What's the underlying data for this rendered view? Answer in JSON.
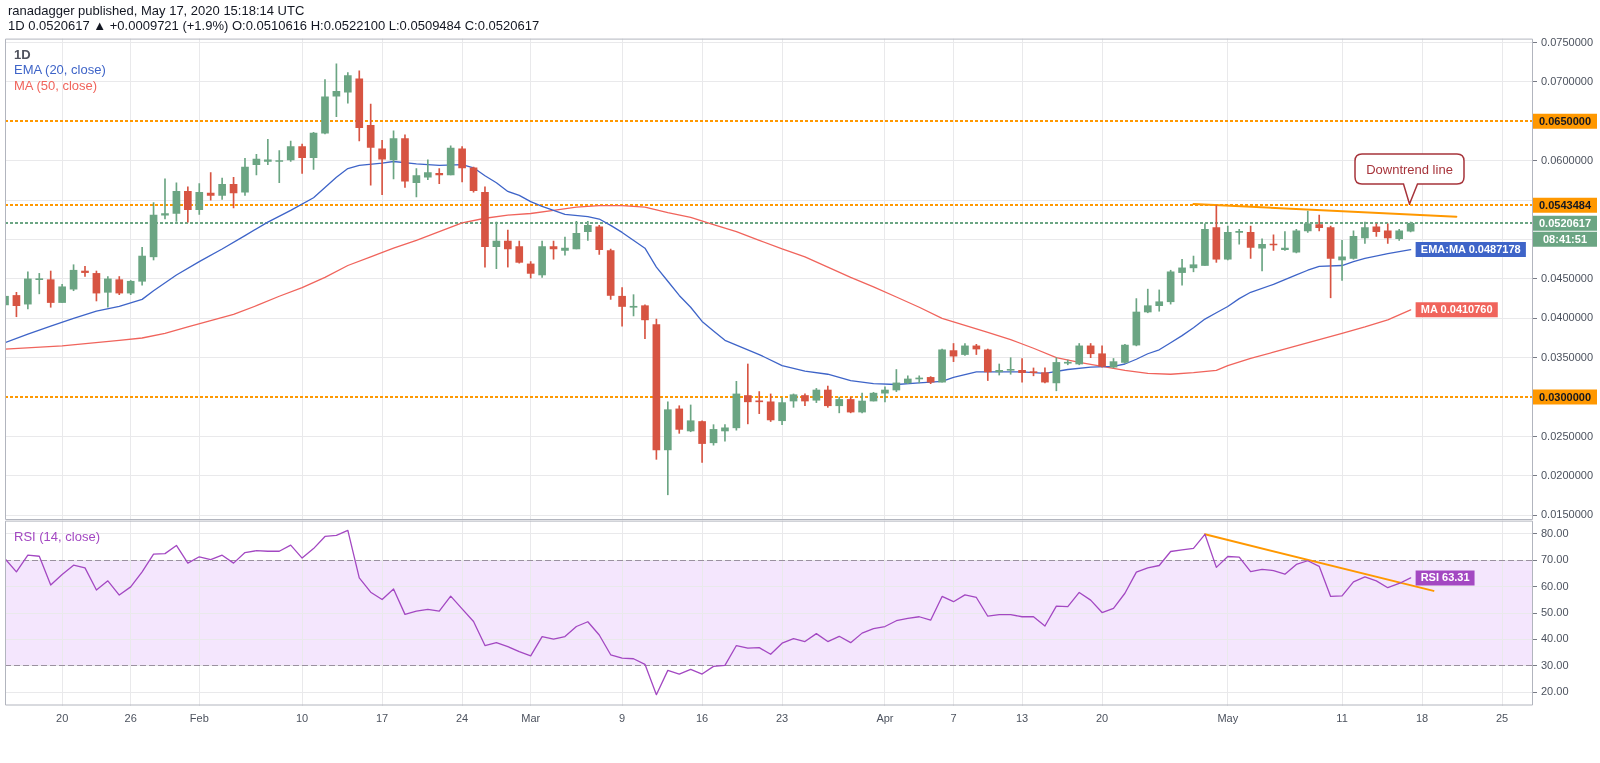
{
  "chart_data": [
    {
      "type": "candlestick",
      "title": "1D",
      "annotations": [
        "ranadagger published, May 17, 2020 15:18:14 UTC",
        "1D 0.0520617 ▲ +0.0009721 (+1.9%) O:0.0510616 H:0.0522100 L:0.0509484 C:0.0520617",
        "Downtrend line",
        "08:41:51"
      ],
      "x": [
        "2020-01-15",
        "2020-01-16",
        "2020-01-17",
        "2020-01-18",
        "2020-01-19",
        "2020-01-20",
        "2020-01-21",
        "2020-01-22",
        "2020-01-23",
        "2020-01-24",
        "2020-01-25",
        "2020-01-26",
        "2020-01-27",
        "2020-01-28",
        "2020-01-29",
        "2020-01-30",
        "2020-01-31",
        "2020-02-01",
        "2020-02-02",
        "2020-02-03",
        "2020-02-04",
        "2020-02-05",
        "2020-02-06",
        "2020-02-07",
        "2020-02-08",
        "2020-02-09",
        "2020-02-10",
        "2020-02-11",
        "2020-02-12",
        "2020-02-13",
        "2020-02-14",
        "2020-02-15",
        "2020-02-16",
        "2020-02-17",
        "2020-02-18",
        "2020-02-19",
        "2020-02-20",
        "2020-02-21",
        "2020-02-22",
        "2020-02-23",
        "2020-02-24",
        "2020-02-25",
        "2020-02-26",
        "2020-02-27",
        "2020-02-28",
        "2020-02-29",
        "2020-03-01",
        "2020-03-02",
        "2020-03-03",
        "2020-03-04",
        "2020-03-05",
        "2020-03-06",
        "2020-03-07",
        "2020-03-08",
        "2020-03-09",
        "2020-03-10",
        "2020-03-11",
        "2020-03-12",
        "2020-03-13",
        "2020-03-14",
        "2020-03-15",
        "2020-03-16",
        "2020-03-17",
        "2020-03-18",
        "2020-03-19",
        "2020-03-20",
        "2020-03-21",
        "2020-03-22",
        "2020-03-23",
        "2020-03-24",
        "2020-03-25",
        "2020-03-26",
        "2020-03-27",
        "2020-03-28",
        "2020-03-29",
        "2020-03-30",
        "2020-03-31",
        "2020-04-01",
        "2020-04-02",
        "2020-04-03",
        "2020-04-04",
        "2020-04-05",
        "2020-04-06",
        "2020-04-07",
        "2020-04-08",
        "2020-04-09",
        "2020-04-10",
        "2020-04-11",
        "2020-04-12",
        "2020-04-13",
        "2020-04-14",
        "2020-04-15",
        "2020-04-16",
        "2020-04-17",
        "2020-04-18",
        "2020-04-19",
        "2020-04-20",
        "2020-04-21",
        "2020-04-22",
        "2020-04-23",
        "2020-04-24",
        "2020-04-25",
        "2020-04-26",
        "2020-04-27",
        "2020-04-28",
        "2020-04-29",
        "2020-04-30",
        "2020-05-01",
        "2020-05-02",
        "2020-05-03",
        "2020-05-04",
        "2020-05-05",
        "2020-05-06",
        "2020-05-07",
        "2020-05-08",
        "2020-05-09",
        "2020-05-10",
        "2020-05-11",
        "2020-05-12",
        "2020-05-13",
        "2020-05-14",
        "2020-05-15",
        "2020-05-16",
        "2020-05-17"
      ],
      "ohlc": [
        [
          0.0417,
          0.043,
          0.0415,
          0.0428
        ],
        [
          0.0429,
          0.0433,
          0.0402,
          0.0416
        ],
        [
          0.0418,
          0.0459,
          0.0412,
          0.045
        ],
        [
          0.0449,
          0.0457,
          0.0431,
          0.0449
        ],
        [
          0.0449,
          0.046,
          0.0414,
          0.042
        ],
        [
          0.042,
          0.0443,
          0.042,
          0.044
        ],
        [
          0.0437,
          0.0468,
          0.0435,
          0.0461
        ],
        [
          0.046,
          0.0466,
          0.0453,
          0.0458
        ],
        [
          0.0457,
          0.046,
          0.0422,
          0.0432
        ],
        [
          0.0433,
          0.0453,
          0.0414,
          0.045
        ],
        [
          0.0449,
          0.0453,
          0.043,
          0.0432
        ],
        [
          0.0432,
          0.0448,
          0.043,
          0.0447
        ],
        [
          0.0447,
          0.049,
          0.0442,
          0.0479
        ],
        [
          0.0478,
          0.0547,
          0.0474,
          0.0531
        ],
        [
          0.0531,
          0.0577,
          0.0526,
          0.0533
        ],
        [
          0.0533,
          0.0572,
          0.0523,
          0.0561
        ],
        [
          0.0561,
          0.0567,
          0.0522,
          0.0538
        ],
        [
          0.0538,
          0.0571,
          0.0532,
          0.056
        ],
        [
          0.0559,
          0.0585,
          0.055,
          0.0556
        ],
        [
          0.0556,
          0.0578,
          0.0551,
          0.057
        ],
        [
          0.057,
          0.0579,
          0.054,
          0.0559
        ],
        [
          0.056,
          0.0603,
          0.0556,
          0.0592
        ],
        [
          0.0595,
          0.0608,
          0.0582,
          0.0602
        ],
        [
          0.0599,
          0.0627,
          0.0595,
          0.0601
        ],
        [
          0.0599,
          0.0613,
          0.0572,
          0.06
        ],
        [
          0.0601,
          0.0625,
          0.0599,
          0.0618
        ],
        [
          0.0618,
          0.0621,
          0.0584,
          0.0604
        ],
        [
          0.0604,
          0.0636,
          0.0589,
          0.0635
        ],
        [
          0.0635,
          0.0703,
          0.0634,
          0.0681
        ],
        [
          0.0682,
          0.0723,
          0.0656,
          0.0688
        ],
        [
          0.0687,
          0.0712,
          0.0673,
          0.0708
        ],
        [
          0.0704,
          0.0714,
          0.0625,
          0.0642
        ],
        [
          0.0645,
          0.0672,
          0.0569,
          0.0617
        ],
        [
          0.0615,
          0.0626,
          0.0557,
          0.0602
        ],
        [
          0.0601,
          0.0638,
          0.0577,
          0.0628
        ],
        [
          0.0628,
          0.0633,
          0.0566,
          0.0574
        ],
        [
          0.0572,
          0.059,
          0.0554,
          0.0581
        ],
        [
          0.0579,
          0.0601,
          0.0576,
          0.0585
        ],
        [
          0.0584,
          0.059,
          0.0571,
          0.0582
        ],
        [
          0.0582,
          0.0619,
          0.0582,
          0.0616
        ],
        [
          0.0615,
          0.0618,
          0.0573,
          0.0591
        ],
        [
          0.0591,
          0.0592,
          0.056,
          0.0562
        ],
        [
          0.056,
          0.0567,
          0.0465,
          0.0491
        ],
        [
          0.0491,
          0.0522,
          0.0463,
          0.0498
        ],
        [
          0.0498,
          0.0512,
          0.0465,
          0.0488
        ],
        [
          0.0491,
          0.0498,
          0.047,
          0.0471
        ],
        [
          0.0469,
          0.0472,
          0.0451,
          0.0457
        ],
        [
          0.0455,
          0.0498,
          0.0452,
          0.0491
        ],
        [
          0.0491,
          0.0498,
          0.0475,
          0.0488
        ],
        [
          0.0486,
          0.0503,
          0.048,
          0.0489
        ],
        [
          0.0488,
          0.0523,
          0.0488,
          0.0508
        ],
        [
          0.051,
          0.0523,
          0.0499,
          0.0518
        ],
        [
          0.0516,
          0.0518,
          0.0481,
          0.0487
        ],
        [
          0.0486,
          0.0488,
          0.0424,
          0.0429
        ],
        [
          0.0428,
          0.0439,
          0.039,
          0.0415
        ],
        [
          0.0414,
          0.043,
          0.0403,
          0.0415
        ],
        [
          0.0416,
          0.0417,
          0.0374,
          0.0398
        ],
        [
          0.0392,
          0.0399,
          0.0221,
          0.0233
        ],
        [
          0.0233,
          0.0294,
          0.0176,
          0.0284
        ],
        [
          0.0285,
          0.0289,
          0.0254,
          0.0259
        ],
        [
          0.0257,
          0.029,
          0.0256,
          0.027
        ],
        [
          0.0269,
          0.027,
          0.0217,
          0.0241
        ],
        [
          0.0242,
          0.0265,
          0.0239,
          0.0259
        ],
        [
          0.0257,
          0.0265,
          0.0244,
          0.0261
        ],
        [
          0.0261,
          0.032,
          0.0258,
          0.0304
        ],
        [
          0.0302,
          0.0342,
          0.0266,
          0.0294
        ],
        [
          0.0295,
          0.0307,
          0.0279,
          0.0294
        ],
        [
          0.0294,
          0.0304,
          0.0269,
          0.0271
        ],
        [
          0.027,
          0.0299,
          0.0265,
          0.0293
        ],
        [
          0.0295,
          0.0304,
          0.0287,
          0.0303
        ],
        [
          0.0302,
          0.0304,
          0.0289,
          0.0295
        ],
        [
          0.0296,
          0.0311,
          0.0293,
          0.0309
        ],
        [
          0.0309,
          0.0314,
          0.0287,
          0.0289
        ],
        [
          0.0289,
          0.03,
          0.028,
          0.0297
        ],
        [
          0.0297,
          0.03,
          0.028,
          0.0281
        ],
        [
          0.0281,
          0.0305,
          0.028,
          0.0295
        ],
        [
          0.0295,
          0.0306,
          0.0295,
          0.0305
        ],
        [
          0.0305,
          0.0313,
          0.0294,
          0.0309
        ],
        [
          0.0309,
          0.0335,
          0.0307,
          0.0318
        ],
        [
          0.0318,
          0.0327,
          0.0317,
          0.0323
        ],
        [
          0.0323,
          0.0327,
          0.0318,
          0.0324
        ],
        [
          0.0325,
          0.0326,
          0.0317,
          0.0319
        ],
        [
          0.0319,
          0.0361,
          0.0319,
          0.036
        ],
        [
          0.0359,
          0.0368,
          0.0345,
          0.0352
        ],
        [
          0.0354,
          0.0368,
          0.0353,
          0.0365
        ],
        [
          0.0365,
          0.0367,
          0.0354,
          0.0361
        ],
        [
          0.036,
          0.0361,
          0.0321,
          0.0332
        ],
        [
          0.0332,
          0.0342,
          0.0328,
          0.0334
        ],
        [
          0.0334,
          0.035,
          0.0329,
          0.0335
        ],
        [
          0.0334,
          0.0349,
          0.0319,
          0.0331
        ],
        [
          0.0332,
          0.0337,
          0.0327,
          0.0331
        ],
        [
          0.0331,
          0.0337,
          0.0318,
          0.0319
        ],
        [
          0.0318,
          0.035,
          0.0308,
          0.0344
        ],
        [
          0.0343,
          0.0347,
          0.0341,
          0.0344
        ],
        [
          0.0342,
          0.0368,
          0.0341,
          0.0365
        ],
        [
          0.0365,
          0.0368,
          0.035,
          0.0355
        ],
        [
          0.0355,
          0.0365,
          0.0338,
          0.0339
        ],
        [
          0.0338,
          0.0349,
          0.0337,
          0.0345
        ],
        [
          0.0344,
          0.0367,
          0.0343,
          0.0366
        ],
        [
          0.0366,
          0.0425,
          0.0365,
          0.0408
        ],
        [
          0.0408,
          0.0437,
          0.0407,
          0.0416
        ],
        [
          0.0416,
          0.0436,
          0.0409,
          0.0421
        ],
        [
          0.0421,
          0.0461,
          0.0418,
          0.0459
        ],
        [
          0.0458,
          0.0475,
          0.0442,
          0.0464
        ],
        [
          0.0464,
          0.0479,
          0.0459,
          0.0468
        ],
        [
          0.0467,
          0.052,
          0.0467,
          0.0513
        ],
        [
          0.0515,
          0.0543,
          0.0471,
          0.0475
        ],
        [
          0.0475,
          0.0517,
          0.0474,
          0.0509
        ],
        [
          0.0509,
          0.0513,
          0.0494,
          0.0509
        ],
        [
          0.0509,
          0.0517,
          0.0476,
          0.049
        ],
        [
          0.0489,
          0.0501,
          0.046,
          0.0494
        ],
        [
          0.0494,
          0.0506,
          0.0486,
          0.0493
        ],
        [
          0.0487,
          0.051,
          0.0486,
          0.0489
        ],
        [
          0.0484,
          0.0513,
          0.0483,
          0.0511
        ],
        [
          0.0511,
          0.0536,
          0.0509,
          0.052
        ],
        [
          0.0519,
          0.0531,
          0.0511,
          0.0515
        ],
        [
          0.0515,
          0.0517,
          0.0426,
          0.0476
        ],
        [
          0.0474,
          0.0499,
          0.0448,
          0.0478
        ],
        [
          0.0476,
          0.0511,
          0.0475,
          0.0504
        ],
        [
          0.0502,
          0.0522,
          0.0495,
          0.0515
        ],
        [
          0.0516,
          0.052,
          0.0504,
          0.051
        ],
        [
          0.0511,
          0.052,
          0.0495,
          0.0502
        ],
        [
          0.0501,
          0.0513,
          0.0499,
          0.0511
        ],
        [
          0.0510616,
          0.05221,
          0.0509484,
          0.0520617
        ]
      ],
      "colors": [
        "#6ba583",
        "#d75442",
        "#6ba583",
        "#6ba583",
        "#d75442",
        "#6ba583",
        "#6ba583",
        "#d75442",
        "#d75442",
        "#6ba583",
        "#d75442",
        "#6ba583",
        "#6ba583",
        "#6ba583",
        "#6ba583",
        "#6ba583",
        "#d75442",
        "#6ba583",
        "#d75442",
        "#6ba583",
        "#d75442",
        "#6ba583",
        "#6ba583",
        "#6ba583",
        "#6ba583",
        "#6ba583",
        "#d75442",
        "#6ba583",
        "#6ba583",
        "#6ba583",
        "#6ba583",
        "#d75442",
        "#d75442",
        "#d75442",
        "#6ba583",
        "#d75442",
        "#6ba583",
        "#6ba583",
        "#d75442",
        "#6ba583",
        "#d75442",
        "#d75442",
        "#d75442",
        "#6ba583",
        "#d75442",
        "#d75442",
        "#d75442",
        "#6ba583",
        "#d75442",
        "#6ba583",
        "#6ba583",
        "#6ba583",
        "#d75442",
        "#d75442",
        "#d75442",
        "#6ba583",
        "#d75442",
        "#d75442",
        "#6ba583",
        "#d75442",
        "#6ba583",
        "#d75442",
        "#6ba583",
        "#6ba583",
        "#6ba583",
        "#d75442",
        "#d75442",
        "#d75442",
        "#6ba583",
        "#6ba583",
        "#d75442",
        "#6ba583",
        "#d75442",
        "#6ba583",
        "#d75442",
        "#6ba583",
        "#6ba583",
        "#6ba583",
        "#6ba583",
        "#6ba583",
        "#6ba583",
        "#d75442",
        "#6ba583",
        "#d75442",
        "#6ba583",
        "#d75442",
        "#d75442",
        "#6ba583",
        "#6ba583",
        "#d75442",
        "#d75442",
        "#d75442",
        "#6ba583",
        "#6ba583",
        "#6ba583",
        "#d75442",
        "#d75442",
        "#6ba583",
        "#6ba583",
        "#6ba583",
        "#6ba583",
        "#6ba583",
        "#6ba583",
        "#6ba583",
        "#6ba583",
        "#6ba583",
        "#d75442",
        "#6ba583",
        "#6ba583",
        "#d75442",
        "#6ba583",
        "#d75442",
        "#6ba583",
        "#6ba583",
        "#6ba583",
        "#d75442",
        "#d75442",
        "#6ba583",
        "#6ba583",
        "#6ba583",
        "#d75442",
        "#d75442",
        "#6ba583",
        "#6ba583"
      ],
      "series": [
        {
          "type": "line",
          "name": "EMA (20, close)",
          "color": "#3e64c8",
          "x": [
            "2020-01-15",
            "2020-01-17",
            "2020-01-19",
            "2020-01-21",
            "2020-01-23",
            "2020-01-25",
            "2020-01-27",
            "2020-01-28",
            "2020-01-30",
            "2020-02-01",
            "2020-02-03",
            "2020-02-05",
            "2020-02-07",
            "2020-02-09",
            "2020-02-11",
            "2020-02-12",
            "2020-02-13",
            "2020-02-14",
            "2020-02-15",
            "2020-02-17",
            "2020-02-18",
            "2020-02-20",
            "2020-02-22",
            "2020-02-24",
            "2020-02-25",
            "2020-02-26",
            "2020-02-27",
            "2020-02-28",
            "2020-02-29",
            "2020-03-01",
            "2020-03-02",
            "2020-03-04",
            "2020-03-06",
            "2020-03-07",
            "2020-03-08",
            "2020-03-09",
            "2020-03-11",
            "2020-03-12",
            "2020-03-13",
            "2020-03-14",
            "2020-03-15",
            "2020-03-16",
            "2020-03-17",
            "2020-03-18",
            "2020-03-19",
            "2020-03-21",
            "2020-03-23",
            "2020-03-25",
            "2020-03-27",
            "2020-03-29",
            "2020-03-31",
            "2020-04-02",
            "2020-04-04",
            "2020-04-06",
            "2020-04-07",
            "2020-04-09",
            "2020-04-11",
            "2020-04-13",
            "2020-04-15",
            "2020-04-17",
            "2020-04-19",
            "2020-04-21",
            "2020-04-22",
            "2020-04-23",
            "2020-04-24",
            "2020-04-25",
            "2020-04-26",
            "2020-04-27",
            "2020-04-28",
            "2020-04-29",
            "2020-04-30",
            "2020-05-01",
            "2020-05-02",
            "2020-05-03",
            "2020-05-05",
            "2020-05-07",
            "2020-05-08",
            "2020-05-09",
            "2020-05-11",
            "2020-05-12",
            "2020-05-13",
            "2020-05-15",
            "2020-05-17"
          ],
          "values": [
            0.0369,
            0.038,
            0.039,
            0.04,
            0.0409,
            0.0415,
            0.0424,
            0.0435,
            0.0455,
            0.0472,
            0.0488,
            0.0505,
            0.0522,
            0.0537,
            0.0553,
            0.0566,
            0.0579,
            0.059,
            0.0594,
            0.0597,
            0.0599,
            0.0596,
            0.0594,
            0.0595,
            0.0591,
            0.0581,
            0.0572,
            0.0561,
            0.0556,
            0.0548,
            0.0542,
            0.0532,
            0.0529,
            0.0526,
            0.0518,
            0.0509,
            0.0489,
            0.0465,
            0.0447,
            0.0429,
            0.0414,
            0.0396,
            0.0384,
            0.0372,
            0.0366,
            0.0354,
            0.034,
            0.0333,
            0.0329,
            0.0321,
            0.0317,
            0.0316,
            0.0318,
            0.032,
            0.0325,
            0.0332,
            0.0332,
            0.0332,
            0.033,
            0.0335,
            0.0338,
            0.0339,
            0.0342,
            0.0348,
            0.0355,
            0.036,
            0.0369,
            0.0378,
            0.0388,
            0.0399,
            0.0407,
            0.0415,
            0.0425,
            0.0433,
            0.0443,
            0.0455,
            0.0461,
            0.0466,
            0.0467,
            0.0472,
            0.0476,
            0.0482,
            0.0487178
          ],
          "value_labels": [
            null,
            null,
            null,
            null,
            null,
            null,
            null,
            null,
            null,
            null,
            null,
            null,
            null,
            null,
            null,
            null,
            null,
            null,
            null,
            null,
            null,
            null,
            null,
            null,
            null,
            null,
            null,
            null,
            null,
            null,
            null,
            null,
            null,
            null,
            null,
            null,
            null,
            null,
            null,
            null,
            null,
            null,
            null,
            null,
            null,
            null,
            null,
            null,
            null,
            null,
            null,
            null,
            null,
            null,
            null,
            null,
            null,
            null,
            null,
            null,
            null,
            null,
            null,
            null,
            null,
            null,
            null,
            null,
            null,
            null,
            null,
            null,
            null,
            null,
            null,
            null,
            null,
            null,
            null,
            null,
            null,
            null,
            "EMA:MA 0.0487178"
          ]
        },
        {
          "type": "line",
          "name": "MA (50, close)",
          "color": "#f0645c",
          "x": [
            "2020-01-15",
            "2020-01-20",
            "2020-01-25",
            "2020-01-27",
            "2020-01-29",
            "2020-01-31",
            "2020-02-02",
            "2020-02-04",
            "2020-02-06",
            "2020-02-08",
            "2020-02-10",
            "2020-02-12",
            "2020-02-14",
            "2020-02-16",
            "2020-02-18",
            "2020-02-20",
            "2020-02-22",
            "2020-02-24",
            "2020-02-26",
            "2020-02-28",
            "2020-03-01",
            "2020-03-03",
            "2020-03-05",
            "2020-03-07",
            "2020-03-09",
            "2020-03-11",
            "2020-03-13",
            "2020-03-15",
            "2020-03-17",
            "2020-03-19",
            "2020-03-21",
            "2020-03-23",
            "2020-03-25",
            "2020-03-27",
            "2020-03-29",
            "2020-03-31",
            "2020-04-02",
            "2020-04-04",
            "2020-04-06",
            "2020-04-08",
            "2020-04-10",
            "2020-04-12",
            "2020-04-14",
            "2020-04-16",
            "2020-04-18",
            "2020-04-20",
            "2020-04-22",
            "2020-04-24",
            "2020-04-26",
            "2020-04-28",
            "2020-04-30",
            "2020-05-01",
            "2020-05-03",
            "2020-05-05",
            "2020-05-07",
            "2020-05-09",
            "2020-05-11",
            "2020-05-13",
            "2020-05-15",
            "2020-05-17"
          ],
          "values": [
            0.0361,
            0.0365,
            0.0372,
            0.0375,
            0.0381,
            0.0389,
            0.0397,
            0.0405,
            0.0416,
            0.0428,
            0.0439,
            0.0452,
            0.0467,
            0.0478,
            0.0489,
            0.0499,
            0.051,
            0.0521,
            0.0527,
            0.0531,
            0.0533,
            0.0537,
            0.0541,
            0.0543,
            0.0543,
            0.0541,
            0.0534,
            0.0528,
            0.0519,
            0.051,
            0.0499,
            0.0488,
            0.0478,
            0.0465,
            0.0452,
            0.044,
            0.0427,
            0.0414,
            0.04,
            0.0391,
            0.0382,
            0.0373,
            0.0362,
            0.035,
            0.0344,
            0.0339,
            0.0334,
            0.033,
            0.0329,
            0.0331,
            0.0334,
            0.034,
            0.0349,
            0.0357,
            0.0365,
            0.0373,
            0.0381,
            0.0389,
            0.0398,
            0.041076
          ],
          "value_labels": [
            null,
            null,
            null,
            null,
            null,
            null,
            null,
            null,
            null,
            null,
            null,
            null,
            null,
            null,
            null,
            null,
            null,
            null,
            null,
            null,
            null,
            null,
            null,
            null,
            null,
            null,
            null,
            null,
            null,
            null,
            null,
            null,
            null,
            null,
            null,
            null,
            null,
            null,
            null,
            null,
            null,
            null,
            null,
            null,
            null,
            null,
            null,
            null,
            null,
            null,
            null,
            null,
            null,
            null,
            null,
            null,
            null,
            null,
            null,
            "MA 0.0410760"
          ]
        },
        {
          "type": "line",
          "color": "#ff9800",
          "x": [
            "2020-04-28",
            "2020-05-21"
          ],
          "values": [
            0.0545,
            0.0529
          ]
        }
      ],
      "xlim": [
        "2020-01-15",
        "2020-05-27T17:00"
      ],
      "xticks": [
        {
          "value": "2020-01-20",
          "label": null
        },
        {
          "value": "2020-01-26",
          "label": null
        },
        {
          "value": "2020-02-01",
          "label": null
        },
        {
          "value": "2020-02-10",
          "label": null
        },
        {
          "value": "2020-02-17",
          "label": null
        },
        {
          "value": "2020-02-24",
          "label": null
        },
        {
          "value": "2020-03-01",
          "label": null
        },
        {
          "value": "2020-03-09",
          "label": null
        },
        {
          "value": "2020-03-16",
          "label": null
        },
        {
          "value": "2020-03-23",
          "label": null
        },
        {
          "value": "2020-04-01",
          "label": null
        },
        {
          "value": "2020-04-07",
          "label": null
        },
        {
          "value": "2020-04-13",
          "label": null
        },
        {
          "value": "2020-04-20",
          "label": null
        },
        {
          "value": "2020-05-01",
          "label": null
        },
        {
          "value": "2020-05-11",
          "label": null
        },
        {
          "value": "2020-05-18",
          "label": null
        },
        {
          "value": "2020-05-25",
          "label": null
        }
      ],
      "ylim": [
        0.0144,
        0.0755
      ],
      "yticks": [
        {
          "value": 0.015,
          "label": "0.0150000"
        },
        {
          "value": 0.02,
          "label": "0.0200000"
        },
        {
          "value": 0.025,
          "label": "0.0250000"
        },
        {
          "value": 0.035,
          "label": "0.0350000"
        },
        {
          "value": 0.04,
          "label": "0.0400000"
        },
        {
          "value": 0.045,
          "label": "0.0450000"
        },
        {
          "value": 0.05,
          "label": null
        },
        {
          "value": 0.055,
          "label": null
        },
        {
          "value": 0.06,
          "label": "0.0600000"
        },
        {
          "value": 0.07,
          "label": "0.0700000"
        },
        {
          "value": 0.075,
          "label": "0.0750000"
        }
      ],
      "ref_lines": [
        {
          "axis": "y",
          "value": 0.065,
          "label": "0.0650000",
          "color": "#ff9800",
          "line_style": "dotted"
        },
        {
          "axis": "y",
          "value": 0.0543484,
          "label": "0.0543484",
          "color": "#ff9800",
          "line_style": "dotted"
        },
        {
          "axis": "y",
          "value": 0.0520617,
          "label": "0.0520617",
          "color": "#6ba583",
          "line_style": "dotted"
        },
        {
          "axis": "y",
          "value": 0.03,
          "label": "0.0300000",
          "color": "#ff9800",
          "line_style": "dotted"
        }
      ],
      "grid": true,
      "legend": "top left",
      "tick_labels": "y",
      "marker": "none"
    },
    {
      "type": "line",
      "x": [
        "2020-01-15",
        "2020-01-16",
        "2020-01-17",
        "2020-01-18",
        "2020-01-19",
        "2020-01-20",
        "2020-01-21",
        "2020-01-22",
        "2020-01-23",
        "2020-01-24",
        "2020-01-25",
        "2020-01-26",
        "2020-01-27",
        "2020-01-28",
        "2020-01-29",
        "2020-01-30",
        "2020-01-31",
        "2020-02-01",
        "2020-02-02",
        "2020-02-03",
        "2020-02-04",
        "2020-02-05",
        "2020-02-06",
        "2020-02-07",
        "2020-02-08",
        "2020-02-09",
        "2020-02-10",
        "2020-02-11",
        "2020-02-12",
        "2020-02-13",
        "2020-02-14",
        "2020-02-15",
        "2020-02-16",
        "2020-02-17",
        "2020-02-18",
        "2020-02-19",
        "2020-02-20",
        "2020-02-21",
        "2020-02-22",
        "2020-02-23",
        "2020-02-24",
        "2020-02-25",
        "2020-02-26",
        "2020-02-27",
        "2020-02-28",
        "2020-02-29",
        "2020-03-01",
        "2020-03-02",
        "2020-03-03",
        "2020-03-04",
        "2020-03-05",
        "2020-03-06",
        "2020-03-07",
        "2020-03-08",
        "2020-03-09",
        "2020-03-10",
        "2020-03-11",
        "2020-03-12",
        "2020-03-13",
        "2020-03-14",
        "2020-03-15",
        "2020-03-16",
        "2020-03-17",
        "2020-03-18",
        "2020-03-19",
        "2020-03-20",
        "2020-03-21",
        "2020-03-22",
        "2020-03-23",
        "2020-03-24",
        "2020-03-25",
        "2020-03-26",
        "2020-03-27",
        "2020-03-28",
        "2020-03-29",
        "2020-03-30",
        "2020-03-31",
        "2020-04-01",
        "2020-04-02",
        "2020-04-03",
        "2020-04-04",
        "2020-04-05",
        "2020-04-06",
        "2020-04-07",
        "2020-04-08",
        "2020-04-09",
        "2020-04-10",
        "2020-04-11",
        "2020-04-12",
        "2020-04-13",
        "2020-04-14",
        "2020-04-15",
        "2020-04-16",
        "2020-04-17",
        "2020-04-18",
        "2020-04-19",
        "2020-04-20",
        "2020-04-21",
        "2020-04-22",
        "2020-04-23",
        "2020-04-24",
        "2020-04-25",
        "2020-04-26",
        "2020-04-27",
        "2020-04-28",
        "2020-04-29",
        "2020-04-30",
        "2020-05-01",
        "2020-05-02",
        "2020-05-03",
        "2020-05-04",
        "2020-05-05",
        "2020-05-06",
        "2020-05-07",
        "2020-05-08",
        "2020-05-09",
        "2020-05-10",
        "2020-05-11",
        "2020-05-12",
        "2020-05-13",
        "2020-05-14",
        "2020-05-15",
        "2020-05-16",
        "2020-05-17"
      ],
      "series": [
        {
          "name": "RSI (14, close)",
          "color": "#a348c2",
          "values": [
            70.6,
            65.6,
            71.9,
            71.5,
            60.6,
            64.6,
            68.1,
            67.1,
            58.7,
            62.2,
            56.8,
            59.9,
            65.6,
            72.3,
            72.5,
            75.6,
            68.9,
            71.3,
            70.2,
            71.9,
            68.9,
            72.9,
            73.6,
            73.4,
            73.4,
            75.7,
            70.8,
            74.4,
            79.0,
            79.4,
            81.3,
            63.3,
            57.9,
            55.1,
            59.1,
            49.5,
            50.7,
            51.4,
            50.7,
            56.4,
            51.6,
            46.8,
            37.7,
            38.8,
            37.3,
            35.4,
            33.8,
            41.1,
            40.1,
            41.1,
            44.9,
            46.7,
            41.7,
            34.2,
            32.9,
            32.7,
            30.6,
            19.1,
            28.3,
            26.9,
            28.7,
            26.9,
            29.8,
            30.2,
            37.7,
            36.7,
            36.9,
            34.4,
            38.6,
            40.3,
            39.2,
            42.2,
            39.2,
            41.2,
            38.8,
            42.4,
            44.1,
            44.9,
            47.1,
            48.0,
            48.6,
            47.3,
            56.3,
            54.3,
            56.9,
            55.9,
            48.8,
            49.4,
            49.4,
            48.6,
            48.6,
            45.1,
            52.6,
            52.4,
            57.8,
            54.9,
            50.2,
            51.8,
            57.5,
            65.5,
            67.1,
            68.0,
            73.3,
            73.9,
            74.5,
            79.8,
            67.3,
            71.4,
            71.2,
            65.7,
            66.5,
            66.1,
            64.7,
            68.4,
            69.8,
            67.7,
            56.3,
            56.5,
            61.8,
            63.7,
            62.2,
            59.6,
            61.2,
            63.31
          ],
          "value_labels": [
            null,
            null,
            null,
            null,
            null,
            null,
            null,
            null,
            null,
            null,
            null,
            null,
            null,
            null,
            null,
            null,
            null,
            null,
            null,
            null,
            null,
            null,
            null,
            null,
            null,
            null,
            null,
            null,
            null,
            null,
            null,
            null,
            null,
            null,
            null,
            null,
            null,
            null,
            null,
            null,
            null,
            null,
            null,
            null,
            null,
            null,
            null,
            null,
            null,
            null,
            null,
            null,
            null,
            null,
            null,
            null,
            null,
            null,
            null,
            null,
            null,
            null,
            null,
            null,
            null,
            null,
            null,
            null,
            null,
            null,
            null,
            null,
            null,
            null,
            null,
            null,
            null,
            null,
            null,
            null,
            null,
            null,
            null,
            null,
            null,
            null,
            null,
            null,
            null,
            null,
            null,
            null,
            null,
            null,
            null,
            null,
            null,
            null,
            null,
            null,
            null,
            null,
            null,
            null,
            null,
            null,
            null,
            null,
            null,
            null,
            null,
            null,
            null,
            null,
            null,
            null,
            null,
            null,
            null,
            null,
            null,
            null,
            null,
            "RSI 63.31"
          ]
        },
        {
          "type": "line",
          "color": "#ff9800",
          "x": [
            "2020-04-29",
            "2020-05-19"
          ],
          "values": [
            79.8,
            58.4
          ]
        }
      ],
      "xlim": [
        "2020-01-15",
        "2020-05-27T17:00"
      ],
      "xticks": [
        {
          "value": "2020-01-20",
          "label": "20"
        },
        {
          "value": "2020-01-26",
          "label": "26"
        },
        {
          "value": "2020-02-01",
          "label": "Feb"
        },
        {
          "value": "2020-02-10",
          "label": "10"
        },
        {
          "value": "2020-02-17",
          "label": "17"
        },
        {
          "value": "2020-02-24",
          "label": "24"
        },
        {
          "value": "2020-03-01",
          "label": "Mar"
        },
        {
          "value": "2020-03-09",
          "label": "9"
        },
        {
          "value": "2020-03-16",
          "label": "16"
        },
        {
          "value": "2020-03-23",
          "label": "23"
        },
        {
          "value": "2020-04-01",
          "label": "Apr"
        },
        {
          "value": "2020-04-07",
          "label": "7"
        },
        {
          "value": "2020-04-13",
          "label": "13"
        },
        {
          "value": "2020-04-20",
          "label": "20"
        },
        {
          "value": "2020-05-01",
          "label": "May"
        },
        {
          "value": "2020-05-11",
          "label": "11"
        },
        {
          "value": "2020-05-18",
          "label": "18"
        },
        {
          "value": "2020-05-25",
          "label": "25"
        }
      ],
      "ylim": [
        15,
        85
      ],
      "yticks": [
        {
          "value": 20,
          "label": "20.00"
        },
        {
          "value": 30,
          "label": "30.00"
        },
        {
          "value": 40,
          "label": "40.00"
        },
        {
          "value": 50,
          "label": "50.00"
        },
        {
          "value": 60,
          "label": "60.00"
        },
        {
          "value": 70,
          "label": "70.00"
        },
        {
          "value": 80,
          "label": "80.00"
        }
      ],
      "bands": [
        {
          "axis": "y",
          "from": 30,
          "to": 70,
          "color": "#f4e6fd"
        }
      ],
      "grid": true,
      "legend": "top left",
      "marker": "none"
    }
  ]
}
